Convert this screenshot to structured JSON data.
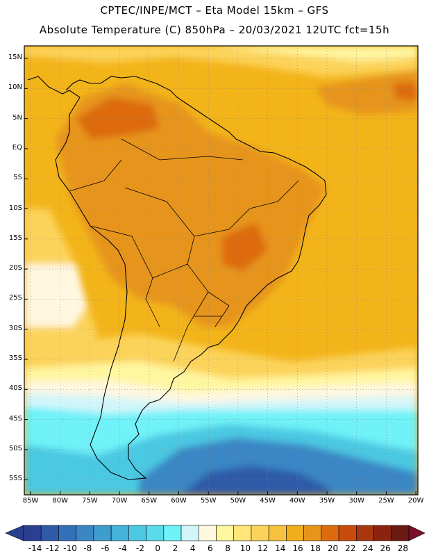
{
  "header": {
    "line1": "CPTEC/INPE/MCT –  Eta Model 15km – GFS",
    "line2": "Absolute Temperature (C) 850hPa – 20/03/2021 12UTC fct=15h"
  },
  "axes": {
    "latitudes": [
      "15N",
      "10N",
      "5N",
      "EQ",
      "5S",
      "10S",
      "15S",
      "20S",
      "25S",
      "30S",
      "35S",
      "40S",
      "45S",
      "50S",
      "55S"
    ],
    "longitudes": [
      "85W",
      "80W",
      "75W",
      "70W",
      "65W",
      "60W",
      "55W",
      "50W",
      "45W",
      "40W",
      "35W",
      "30W",
      "25W",
      "20W"
    ]
  },
  "colorbar": {
    "labels": [
      "-14",
      "-12",
      "-10",
      "-8",
      "-6",
      "-4",
      "-2",
      "0",
      "2",
      "4",
      "6",
      "8",
      "10",
      "12",
      "14",
      "16",
      "18",
      "20",
      "22",
      "24",
      "26",
      "28"
    ],
    "colors": [
      "#2a3f8f",
      "#2e5aa8",
      "#3370b8",
      "#3a86c4",
      "#3f9ccf",
      "#45b2d9",
      "#4cc8e2",
      "#5adbec",
      "#6ff2f8",
      "#d2f5fa",
      "#fff7e0",
      "#fff6a0",
      "#ffe57a",
      "#fcd35a",
      "#f6c23d",
      "#f0ae1c",
      "#e6941a",
      "#dd6a0f",
      "#c84b0c",
      "#a8370e",
      "#8a240e",
      "#6a1a12"
    ]
  },
  "palette": {
    "warm_bg": "#f3b41a",
    "hot": "#e6941a",
    "very_hot": "#dd6a0f",
    "mild": "#fcd35a",
    "pale": "#fff6a0",
    "cream": "#fff7e0",
    "ice": "#d2f5fa",
    "cyan": "#6ff2f8",
    "cyan2": "#4cc8e2",
    "blue": "#3a86c4",
    "deep_blue": "#2e5aa8"
  }
}
